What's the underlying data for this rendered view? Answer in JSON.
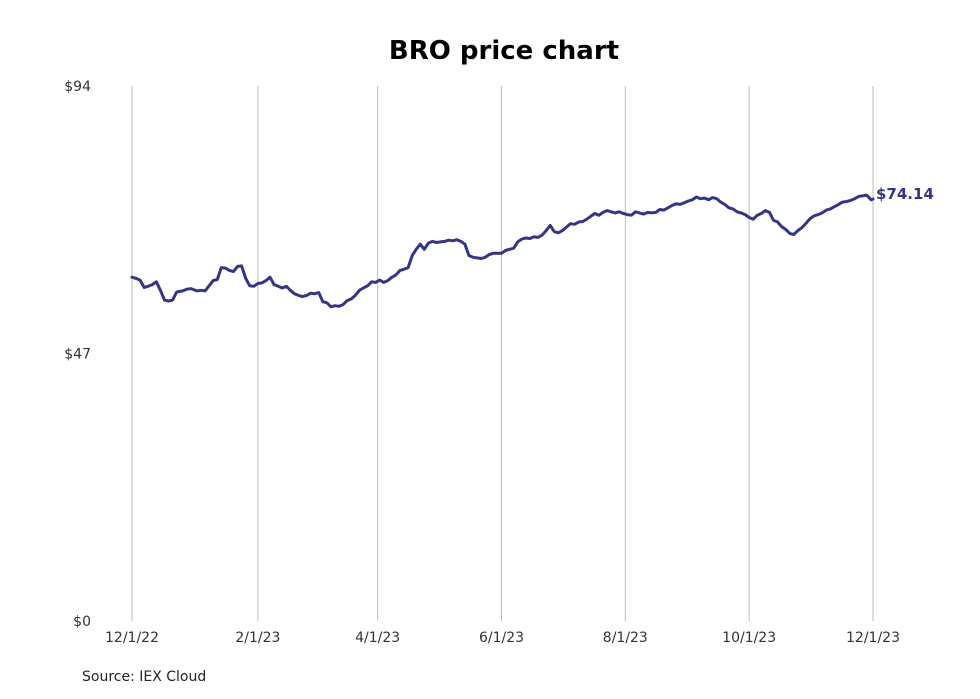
{
  "chart_data": {
    "type": "line",
    "title": "BRO price chart",
    "xlabel": "",
    "ylabel": "",
    "source": "Source: IEX Cloud",
    "y_ticks": [
      {
        "value": 0,
        "label": "$0"
      },
      {
        "value": 47,
        "label": "$47"
      },
      {
        "value": 94,
        "label": "$94"
      }
    ],
    "ylim": [
      0,
      94
    ],
    "xlim": [
      "2022-12-01",
      "2023-12-01"
    ],
    "x_ticks": [
      {
        "date": "2022-12-01",
        "label": "12/1/22"
      },
      {
        "date": "2023-02-01",
        "label": "2/1/23"
      },
      {
        "date": "2023-04-01",
        "label": "4/1/23"
      },
      {
        "date": "2023-06-01",
        "label": "6/1/23"
      },
      {
        "date": "2023-08-01",
        "label": "8/1/23"
      },
      {
        "date": "2023-10-01",
        "label": "10/1/23"
      },
      {
        "date": "2023-12-01",
        "label": "12/1/23"
      }
    ],
    "grid": {
      "vertical": true,
      "horizontal": false
    },
    "line_color": "#34348c",
    "last_value_label": "$74.14",
    "series": [
      {
        "points": [
          [
            "2022-12-01",
            60.4
          ],
          [
            "2022-12-03",
            60.2
          ],
          [
            "2022-12-05",
            59.9
          ],
          [
            "2022-12-07",
            58.6
          ],
          [
            "2022-12-09",
            58.8
          ],
          [
            "2022-12-11",
            59.1
          ],
          [
            "2022-12-13",
            59.6
          ],
          [
            "2022-12-15",
            58.1
          ],
          [
            "2022-12-17",
            56.4
          ],
          [
            "2022-12-19",
            56.2
          ],
          [
            "2022-12-21",
            56.4
          ],
          [
            "2022-12-23",
            57.8
          ],
          [
            "2022-12-26",
            58.0
          ],
          [
            "2022-12-28",
            58.3
          ],
          [
            "2022-12-30",
            58.4
          ],
          [
            "2023-01-02",
            58.0
          ],
          [
            "2023-01-04",
            58.1
          ],
          [
            "2023-01-06",
            58.0
          ],
          [
            "2023-01-08",
            58.9
          ],
          [
            "2023-01-10",
            59.8
          ],
          [
            "2023-01-12",
            60.0
          ],
          [
            "2023-01-14",
            62.1
          ],
          [
            "2023-01-16",
            62.0
          ],
          [
            "2023-01-18",
            61.6
          ],
          [
            "2023-01-20",
            61.4
          ],
          [
            "2023-01-22",
            62.3
          ],
          [
            "2023-01-24",
            62.4
          ],
          [
            "2023-01-26",
            60.2
          ],
          [
            "2023-01-28",
            58.9
          ],
          [
            "2023-01-30",
            58.8
          ],
          [
            "2023-02-01",
            59.3
          ],
          [
            "2023-02-03",
            59.4
          ],
          [
            "2023-02-05",
            59.8
          ],
          [
            "2023-02-07",
            60.4
          ],
          [
            "2023-02-09",
            59.1
          ],
          [
            "2023-02-11",
            58.8
          ],
          [
            "2023-02-13",
            58.5
          ],
          [
            "2023-02-15",
            58.8
          ],
          [
            "2023-02-17",
            58.1
          ],
          [
            "2023-02-19",
            57.5
          ],
          [
            "2023-02-21",
            57.2
          ],
          [
            "2023-02-23",
            57.0
          ],
          [
            "2023-02-25",
            57.2
          ],
          [
            "2023-02-27",
            57.6
          ],
          [
            "2023-03-01",
            57.5
          ],
          [
            "2023-03-03",
            57.7
          ],
          [
            "2023-03-05",
            56.1
          ],
          [
            "2023-03-07",
            55.9
          ],
          [
            "2023-03-09",
            55.2
          ],
          [
            "2023-03-11",
            55.4
          ],
          [
            "2023-03-13",
            55.3
          ],
          [
            "2023-03-15",
            55.6
          ],
          [
            "2023-03-17",
            56.3
          ],
          [
            "2023-03-19",
            56.6
          ],
          [
            "2023-03-21",
            57.2
          ],
          [
            "2023-03-23",
            58.1
          ],
          [
            "2023-03-25",
            58.5
          ],
          [
            "2023-03-27",
            58.9
          ],
          [
            "2023-03-29",
            59.6
          ],
          [
            "2023-03-31",
            59.5
          ],
          [
            "2023-04-02",
            59.9
          ],
          [
            "2023-04-04",
            59.5
          ],
          [
            "2023-04-06",
            59.8
          ],
          [
            "2023-04-08",
            60.4
          ],
          [
            "2023-04-10",
            60.8
          ],
          [
            "2023-04-12",
            61.6
          ],
          [
            "2023-04-14",
            61.8
          ],
          [
            "2023-04-16",
            62.1
          ],
          [
            "2023-04-18",
            64.2
          ],
          [
            "2023-04-20",
            65.3
          ],
          [
            "2023-04-22",
            66.2
          ],
          [
            "2023-04-24",
            65.3
          ],
          [
            "2023-04-26",
            66.4
          ],
          [
            "2023-04-28",
            66.7
          ],
          [
            "2023-04-30",
            66.5
          ],
          [
            "2023-05-02",
            66.6
          ],
          [
            "2023-05-04",
            66.7
          ],
          [
            "2023-05-06",
            66.9
          ],
          [
            "2023-05-08",
            66.8
          ],
          [
            "2023-05-10",
            67.0
          ],
          [
            "2023-05-12",
            66.7
          ],
          [
            "2023-05-14",
            66.2
          ],
          [
            "2023-05-16",
            64.2
          ],
          [
            "2023-05-18",
            63.9
          ],
          [
            "2023-05-20",
            63.8
          ],
          [
            "2023-05-22",
            63.7
          ],
          [
            "2023-05-24",
            63.9
          ],
          [
            "2023-05-26",
            64.4
          ],
          [
            "2023-05-28",
            64.6
          ],
          [
            "2023-05-30",
            64.6
          ],
          [
            "2023-06-01",
            64.6
          ],
          [
            "2023-06-03",
            65.1
          ],
          [
            "2023-06-05",
            65.3
          ],
          [
            "2023-06-07",
            65.5
          ],
          [
            "2023-06-09",
            66.6
          ],
          [
            "2023-06-11",
            67.1
          ],
          [
            "2023-06-13",
            67.3
          ],
          [
            "2023-06-15",
            67.2
          ],
          [
            "2023-06-17",
            67.5
          ],
          [
            "2023-06-19",
            67.4
          ],
          [
            "2023-06-21",
            67.8
          ],
          [
            "2023-06-23",
            68.6
          ],
          [
            "2023-06-25",
            69.5
          ],
          [
            "2023-06-27",
            68.4
          ],
          [
            "2023-06-29",
            68.2
          ],
          [
            "2023-07-01",
            68.6
          ],
          [
            "2023-07-03",
            69.2
          ],
          [
            "2023-07-05",
            69.8
          ],
          [
            "2023-07-07",
            69.7
          ],
          [
            "2023-07-09",
            70.1
          ],
          [
            "2023-07-11",
            70.2
          ],
          [
            "2023-07-13",
            70.6
          ],
          [
            "2023-07-15",
            71.1
          ],
          [
            "2023-07-17",
            71.6
          ],
          [
            "2023-07-19",
            71.3
          ],
          [
            "2023-07-21",
            71.8
          ],
          [
            "2023-07-23",
            72.1
          ],
          [
            "2023-07-25",
            71.9
          ],
          [
            "2023-07-27",
            71.7
          ],
          [
            "2023-07-29",
            71.9
          ],
          [
            "2023-07-31",
            71.6
          ],
          [
            "2023-08-02",
            71.4
          ],
          [
            "2023-08-04",
            71.3
          ],
          [
            "2023-08-06",
            71.9
          ],
          [
            "2023-08-08",
            71.7
          ],
          [
            "2023-08-10",
            71.5
          ],
          [
            "2023-08-12",
            71.8
          ],
          [
            "2023-08-14",
            71.7
          ],
          [
            "2023-08-16",
            71.8
          ],
          [
            "2023-08-18",
            72.3
          ],
          [
            "2023-08-20",
            72.2
          ],
          [
            "2023-08-22",
            72.6
          ],
          [
            "2023-08-24",
            73.0
          ],
          [
            "2023-08-26",
            73.3
          ],
          [
            "2023-08-28",
            73.2
          ],
          [
            "2023-08-30",
            73.5
          ],
          [
            "2023-09-01",
            73.8
          ],
          [
            "2023-09-03",
            74.0
          ],
          [
            "2023-09-05",
            74.5
          ],
          [
            "2023-09-07",
            74.2
          ],
          [
            "2023-09-09",
            74.3
          ],
          [
            "2023-09-11",
            74.0
          ],
          [
            "2023-09-13",
            74.4
          ],
          [
            "2023-09-15",
            74.2
          ],
          [
            "2023-09-17",
            73.6
          ],
          [
            "2023-09-19",
            73.2
          ],
          [
            "2023-09-21",
            72.6
          ],
          [
            "2023-09-23",
            72.4
          ],
          [
            "2023-09-25",
            71.9
          ],
          [
            "2023-09-27",
            71.7
          ],
          [
            "2023-09-29",
            71.4
          ],
          [
            "2023-10-01",
            70.9
          ],
          [
            "2023-10-03",
            70.6
          ],
          [
            "2023-10-05",
            71.3
          ],
          [
            "2023-10-07",
            71.6
          ],
          [
            "2023-10-09",
            72.1
          ],
          [
            "2023-10-11",
            71.8
          ],
          [
            "2023-10-13",
            70.4
          ],
          [
            "2023-10-15",
            70.1
          ],
          [
            "2023-10-17",
            69.3
          ],
          [
            "2023-10-19",
            68.8
          ],
          [
            "2023-10-21",
            68.1
          ],
          [
            "2023-10-23",
            67.9
          ],
          [
            "2023-10-25",
            68.6
          ],
          [
            "2023-10-27",
            69.1
          ],
          [
            "2023-10-29",
            69.9
          ],
          [
            "2023-10-31",
            70.7
          ],
          [
            "2023-11-02",
            71.2
          ],
          [
            "2023-11-04",
            71.4
          ],
          [
            "2023-11-06",
            71.7
          ],
          [
            "2023-11-08",
            72.2
          ],
          [
            "2023-11-10",
            72.4
          ],
          [
            "2023-11-12",
            72.8
          ],
          [
            "2023-11-14",
            73.2
          ],
          [
            "2023-11-16",
            73.6
          ],
          [
            "2023-11-18",
            73.7
          ],
          [
            "2023-11-20",
            73.9
          ],
          [
            "2023-11-22",
            74.2
          ],
          [
            "2023-11-24",
            74.6
          ],
          [
            "2023-11-26",
            74.7
          ],
          [
            "2023-11-28",
            74.8
          ],
          [
            "2023-11-30",
            74.0
          ],
          [
            "2023-12-01",
            74.14
          ]
        ]
      }
    ]
  }
}
